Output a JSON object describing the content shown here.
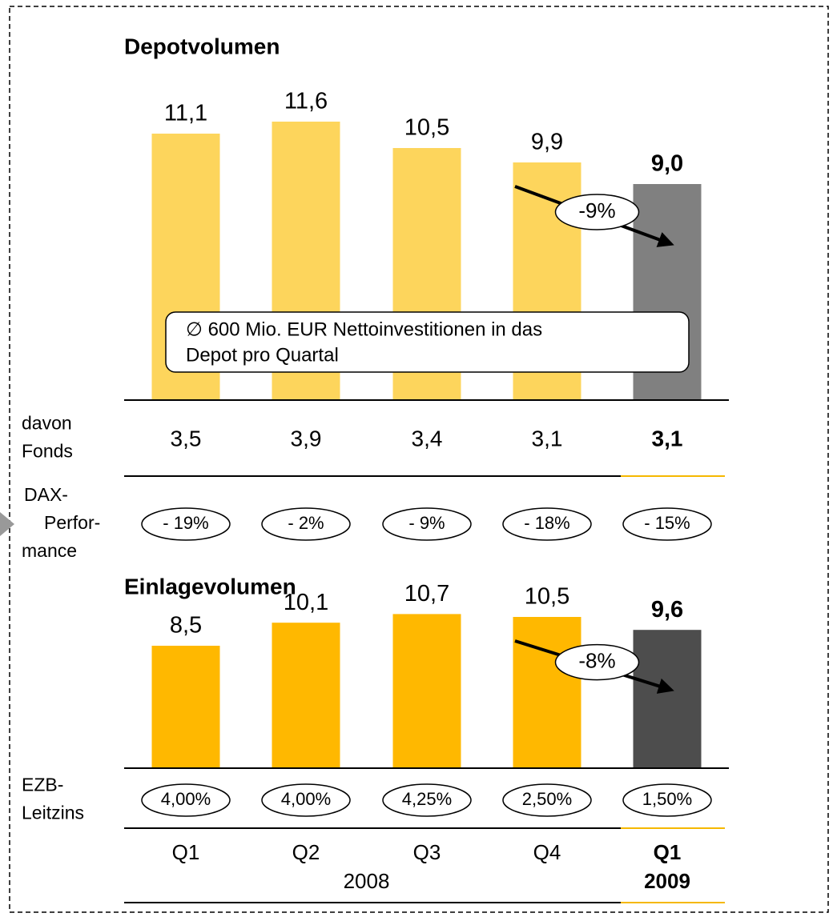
{
  "chart_data": [
    {
      "type": "bar",
      "title": "Depotvolumen",
      "values": [
        11.1,
        11.6,
        10.5,
        9.9,
        9.0
      ],
      "value_labels": [
        "11,1",
        "11,6",
        "10,5",
        "9,9",
        "9,0"
      ],
      "colors": [
        "#fdd55c",
        "#fdd55c",
        "#fdd55c",
        "#fdd55c",
        "#808080"
      ],
      "change": "-9%",
      "note": [
        "∅ 600 Mio. EUR Nettoinvestitionen in das",
        "Depot pro Quartal"
      ],
      "rows": [
        {
          "label": [
            "davon",
            "Fonds"
          ],
          "values": [
            3.5,
            3.9,
            3.4,
            3.1,
            3.1
          ],
          "value_labels": [
            "3,5",
            "3,9",
            "3,4",
            "3,1",
            "3,1"
          ]
        },
        {
          "label": [
            "DAX-",
            "Perfor-",
            "mance"
          ],
          "values": [
            -19,
            -2,
            -9,
            -18,
            -15
          ],
          "value_labels": [
            "- 19%",
            "- 2%",
            "- 9%",
            "- 18%",
            "- 15%"
          ]
        }
      ]
    },
    {
      "type": "bar",
      "title": "Einlagevolumen",
      "categories": [
        "Q1",
        "Q2",
        "Q3",
        "Q4",
        "Q1"
      ],
      "category_groups": [
        "2008",
        "2009"
      ],
      "values": [
        8.5,
        10.1,
        10.7,
        10.5,
        9.6
      ],
      "value_labels": [
        "8,5",
        "10,1",
        "10,7",
        "10,5",
        "9,6"
      ],
      "colors": [
        "#ffb800",
        "#ffb800",
        "#ffb800",
        "#ffb800",
        "#4d4d4d"
      ],
      "change": "-8%",
      "rows": [
        {
          "label": [
            "EZB-",
            "Leitzins"
          ],
          "values": [
            4.0,
            4.0,
            4.25,
            2.5,
            1.5
          ],
          "value_labels": [
            "4,00%",
            "4,00%",
            "4,25%",
            "2,50%",
            "1,50%"
          ]
        }
      ]
    }
  ]
}
